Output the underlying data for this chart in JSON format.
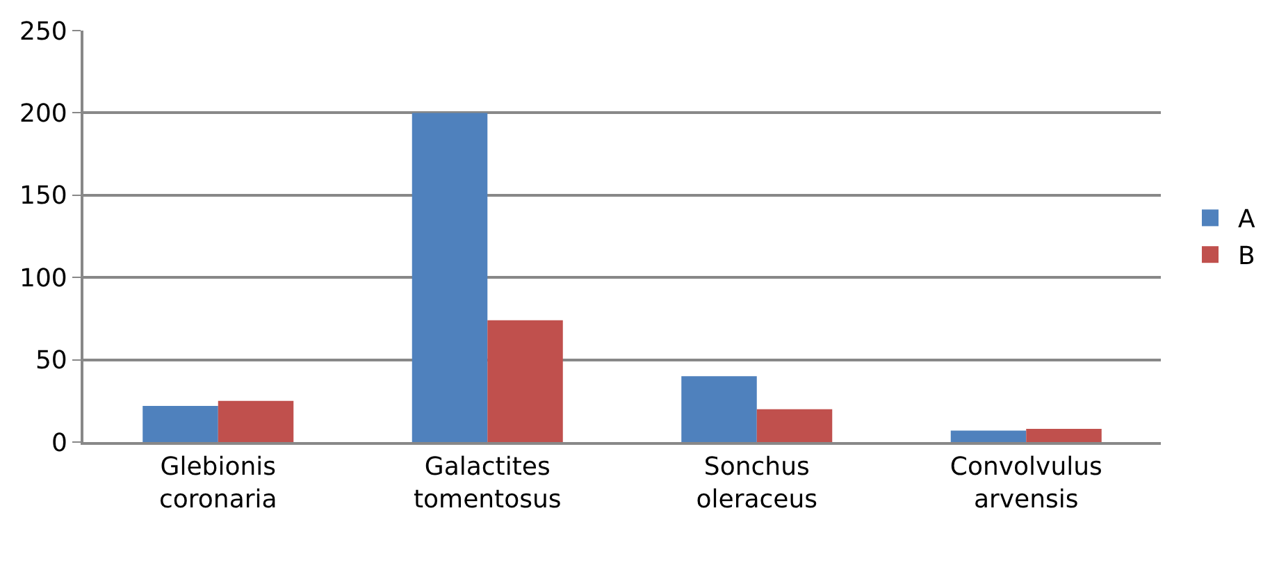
{
  "chart_data": {
    "type": "bar",
    "categories": [
      "Glebionis coronaria",
      "Galactites tomentosus",
      "Sonchus oleraceus",
      "Convolvulus arvensis"
    ],
    "series": [
      {
        "name": "A",
        "color": "#4f81bd",
        "values": [
          22,
          200,
          40,
          7
        ]
      },
      {
        "name": "B",
        "color": "#c0504d",
        "values": [
          25,
          74,
          20,
          8
        ]
      }
    ],
    "ylim": [
      0,
      250
    ],
    "yticks": [
      0,
      50,
      100,
      150,
      200,
      250
    ],
    "grid": "y",
    "legend": "right"
  }
}
